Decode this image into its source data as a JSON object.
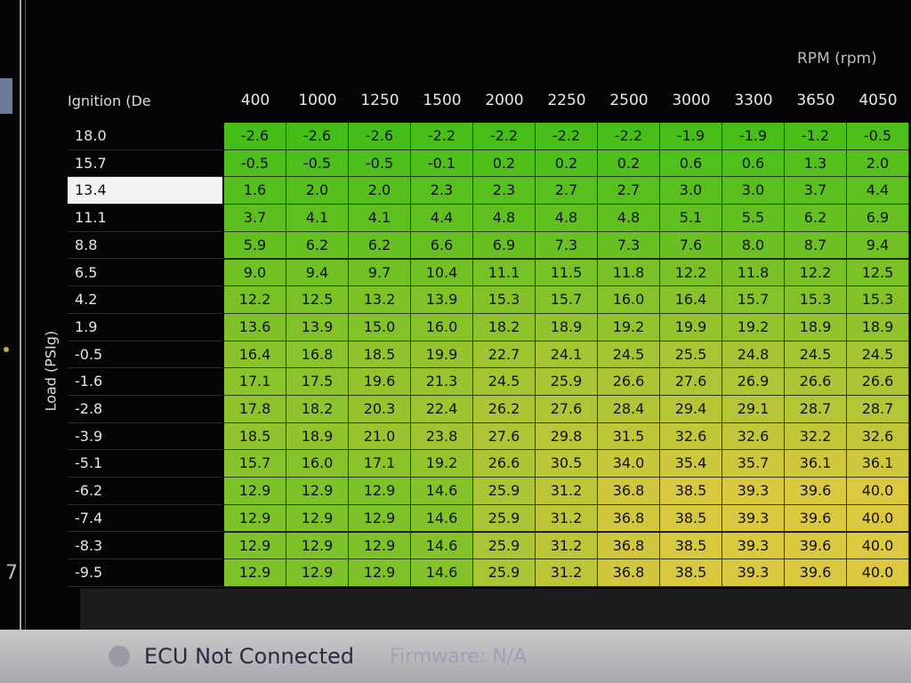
{
  "header": {
    "axis_title": "RPM (rpm)",
    "corner": "Ignition (De",
    "load_axis": "Load (PSIg)",
    "side_number": "7"
  },
  "table": {
    "columns": [
      "400",
      "1000",
      "1250",
      "1500",
      "2000",
      "2250",
      "2500",
      "3000",
      "3300",
      "3650",
      "4050"
    ],
    "selected_row": 2,
    "rows": [
      {
        "label": "18.0",
        "cells": [
          "-2.6",
          "-2.6",
          "-2.6",
          "-2.2",
          "-2.2",
          "-2.2",
          "-2.2",
          "-1.9",
          "-1.9",
          "-1.2",
          "-0.5"
        ]
      },
      {
        "label": "15.7",
        "cells": [
          "-0.5",
          "-0.5",
          "-0.5",
          "-0.1",
          "0.2",
          "0.2",
          "0.2",
          "0.6",
          "0.6",
          "1.3",
          "2.0"
        ]
      },
      {
        "label": "13.4",
        "cells": [
          "1.6",
          "2.0",
          "2.0",
          "2.3",
          "2.3",
          "2.7",
          "2.7",
          "3.0",
          "3.0",
          "3.7",
          "4.4"
        ]
      },
      {
        "label": "11.1",
        "cells": [
          "3.7",
          "4.1",
          "4.1",
          "4.4",
          "4.8",
          "4.8",
          "4.8",
          "5.1",
          "5.5",
          "6.2",
          "6.9"
        ]
      },
      {
        "label": "8.8",
        "cells": [
          "5.9",
          "6.2",
          "6.2",
          "6.6",
          "6.9",
          "7.3",
          "7.3",
          "7.6",
          "8.0",
          "8.7",
          "9.4"
        ]
      },
      {
        "label": "6.5",
        "cells": [
          "9.0",
          "9.4",
          "9.7",
          "10.4",
          "11.1",
          "11.5",
          "11.8",
          "12.2",
          "11.8",
          "12.2",
          "12.5"
        ]
      },
      {
        "label": "4.2",
        "cells": [
          "12.2",
          "12.5",
          "13.2",
          "13.9",
          "15.3",
          "15.7",
          "16.0",
          "16.4",
          "15.7",
          "15.3",
          "15.3"
        ]
      },
      {
        "label": "1.9",
        "cells": [
          "13.6",
          "13.9",
          "15.0",
          "16.0",
          "18.2",
          "18.9",
          "19.2",
          "19.9",
          "19.2",
          "18.9",
          "18.9"
        ]
      },
      {
        "label": "-0.5",
        "cells": [
          "16.4",
          "16.8",
          "18.5",
          "19.9",
          "22.7",
          "24.1",
          "24.5",
          "25.5",
          "24.8",
          "24.5",
          "24.5"
        ]
      },
      {
        "label": "-1.6",
        "cells": [
          "17.1",
          "17.5",
          "19.6",
          "21.3",
          "24.5",
          "25.9",
          "26.6",
          "27.6",
          "26.9",
          "26.6",
          "26.6"
        ]
      },
      {
        "label": "-2.8",
        "cells": [
          "17.8",
          "18.2",
          "20.3",
          "22.4",
          "26.2",
          "27.6",
          "28.4",
          "29.4",
          "29.1",
          "28.7",
          "28.7"
        ]
      },
      {
        "label": "-3.9",
        "cells": [
          "18.5",
          "18.9",
          "21.0",
          "23.8",
          "27.6",
          "29.8",
          "31.5",
          "32.6",
          "32.6",
          "32.2",
          "32.6"
        ]
      },
      {
        "label": "-5.1",
        "cells": [
          "15.7",
          "16.0",
          "17.1",
          "19.2",
          "26.6",
          "30.5",
          "34.0",
          "35.4",
          "35.7",
          "36.1",
          "36.1"
        ]
      },
      {
        "label": "-6.2",
        "cells": [
          "12.9",
          "12.9",
          "12.9",
          "14.6",
          "25.9",
          "31.2",
          "36.8",
          "38.5",
          "39.3",
          "39.6",
          "40.0"
        ]
      },
      {
        "label": "-7.4",
        "cells": [
          "12.9",
          "12.9",
          "12.9",
          "14.6",
          "25.9",
          "31.2",
          "36.8",
          "38.5",
          "39.3",
          "39.6",
          "40.0"
        ]
      },
      {
        "label": "-8.3",
        "cells": [
          "12.9",
          "12.9",
          "12.9",
          "14.6",
          "25.9",
          "31.2",
          "36.8",
          "38.5",
          "39.3",
          "39.6",
          "40.0"
        ]
      },
      {
        "label": "-9.5",
        "cells": [
          "12.9",
          "12.9",
          "12.9",
          "14.6",
          "25.9",
          "31.2",
          "36.8",
          "38.5",
          "39.3",
          "39.6",
          "40.0"
        ]
      }
    ]
  },
  "status_bar": {
    "connection": "ECU Not Connected",
    "firmware": "Firmware: N/A"
  }
}
